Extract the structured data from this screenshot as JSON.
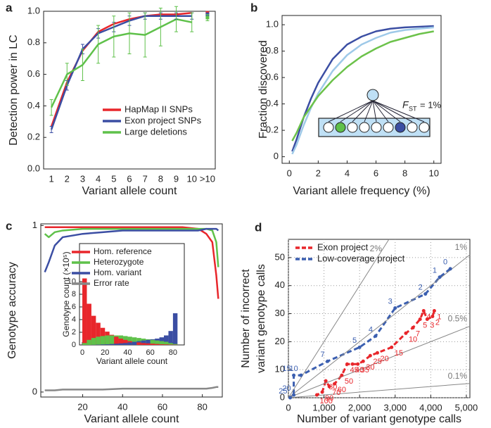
{
  "chart_data": [
    {
      "panel": "a",
      "type": "line",
      "xlabel": "Variant allele count",
      "ylabel": "Detection power in LC",
      "categories": [
        "1",
        "2",
        "3",
        "4",
        "5",
        "6",
        "7",
        "8",
        "9",
        "10",
        ">10"
      ],
      "ylim": [
        0,
        1
      ],
      "yticks": [
        {
          "value": 0,
          "label": "0.0"
        },
        0.2,
        0.4,
        0.6,
        0.8,
        {
          "value": 1,
          "label": "1.0"
        }
      ],
      "legend": "lower right",
      "series": [
        {
          "name": "HapMap II SNPs",
          "color": "#e8262b",
          "values": [
            0.27,
            0.55,
            0.75,
            0.87,
            0.92,
            0.95,
            0.97,
            0.98,
            0.98,
            0.99,
            0.99
          ]
        },
        {
          "name": "Exon project SNPs",
          "color": "#3b4ea3",
          "values": [
            0.25,
            0.53,
            0.76,
            0.86,
            0.9,
            0.94,
            0.97,
            0.97,
            0.97,
            0.97,
            0.98
          ],
          "errors": [
            0.02,
            0.03,
            0.03,
            0.03,
            0.03,
            0.03,
            0.02,
            0.02,
            0.02,
            0.02,
            0.01
          ]
        },
        {
          "name": "Large deletions",
          "color": "#5fc14a",
          "values": [
            0.39,
            0.6,
            0.66,
            0.79,
            0.84,
            0.86,
            0.85,
            0.9,
            0.95,
            0.93,
            0.96
          ],
          "errors": [
            0.05,
            0.07,
            0.1,
            0.12,
            0.13,
            0.13,
            0.14,
            0.12,
            0.08,
            0.06,
            0.02
          ]
        }
      ]
    },
    {
      "panel": "b",
      "type": "line",
      "xlabel": "Variant allele frequency (%)",
      "ylabel": "Fraction discovered",
      "x": [
        0.2,
        0.5,
        1,
        1.5,
        2,
        3,
        4,
        5,
        6,
        7,
        8,
        9,
        10
      ],
      "xlim": [
        -0.5,
        10.5
      ],
      "xticks": [
        0,
        2,
        4,
        6,
        8,
        10
      ],
      "ylim": [
        -0.05,
        1.07
      ],
      "yticks": [
        0,
        0.2,
        0.4,
        0.6,
        0.8,
        {
          "value": 1,
          "label": "1.0"
        }
      ],
      "annotation": {
        "symbol": "F",
        "subscript": "ST",
        "text": "= 1%"
      },
      "series": [
        {
          "color": "#3b4ea3",
          "values": [
            0.04,
            0.13,
            0.3,
            0.44,
            0.56,
            0.74,
            0.85,
            0.91,
            0.95,
            0.97,
            0.98,
            0.985,
            0.99
          ]
        },
        {
          "color": "#9ec9e8",
          "values": [
            0.02,
            0.09,
            0.24,
            0.37,
            0.48,
            0.65,
            0.77,
            0.85,
            0.9,
            0.94,
            0.96,
            0.97,
            0.98
          ]
        },
        {
          "color": "#6cc24a",
          "values": [
            0.12,
            0.18,
            0.3,
            0.38,
            0.46,
            0.58,
            0.68,
            0.76,
            0.82,
            0.87,
            0.9,
            0.93,
            0.95
          ]
        }
      ]
    },
    {
      "panel": "c",
      "type": "line",
      "xlabel": "Variant allele count",
      "ylabel": "Genotype accuracy",
      "x": [
        1,
        3,
        6,
        10,
        20,
        30,
        40,
        50,
        60,
        70,
        78,
        82,
        85,
        87,
        88
      ],
      "xlim": [
        -1,
        90
      ],
      "xticks": [
        20,
        40,
        60,
        80
      ],
      "ylim": [
        -0.03,
        1.01
      ],
      "yticks": [
        0,
        1
      ],
      "legend": "upper right",
      "series": [
        {
          "name": "Hom. reference",
          "color": "#e8262b",
          "values": [
            0.99,
            0.99,
            0.99,
            0.99,
            0.99,
            0.99,
            0.99,
            0.99,
            0.99,
            0.99,
            0.98,
            0.95,
            0.9,
            0.7,
            0.56
          ]
        },
        {
          "name": "Heterozygote",
          "color": "#5fc14a",
          "values": [
            0.95,
            0.93,
            0.96,
            0.97,
            0.98,
            0.98,
            0.98,
            0.98,
            0.98,
            0.98,
            0.98,
            0.98,
            0.97,
            0.9,
            0.75
          ]
        },
        {
          "name": "Hom. variant",
          "color": "#3b4ea3",
          "values": [
            0.72,
            0.78,
            0.88,
            0.93,
            0.95,
            0.96,
            0.97,
            0.97,
            0.97,
            0.97,
            0.97,
            0.98,
            0.98,
            0.98,
            0.97
          ]
        },
        {
          "name": "Error rate",
          "color": "#888888",
          "values": [
            0.01,
            0.01,
            0.01,
            0.015,
            0.015,
            0.015,
            0.02,
            0.02,
            0.02,
            0.02,
            0.02,
            0.02,
            0.025,
            0.03,
            0.03
          ]
        }
      ],
      "inset": {
        "type": "histogram",
        "xlabel": "Variant allele count",
        "ylabel": "Genotype count (×10⁵)",
        "bins": [
          0,
          4,
          8,
          12,
          16,
          20,
          24,
          28,
          32,
          36,
          40,
          44,
          48,
          52,
          56,
          60,
          64,
          68,
          72,
          76,
          80,
          84
        ],
        "xlim": [
          -2.5,
          90
        ],
        "xticks": [
          0,
          20,
          40,
          60,
          80
        ],
        "ylim": [
          0,
          16
        ],
        "yticks": [
          0,
          2,
          4,
          6,
          8,
          10
        ],
        "series": [
          {
            "color": "#e8262b",
            "values": [
              10.5,
              6.5,
              4.6,
              3.5,
              2.7,
              2.1,
              1.6,
              1.3,
              1.0,
              0.8,
              0.6,
              0.5,
              0.4,
              0.3,
              0.25,
              0.2,
              0.15,
              0.1,
              0.08,
              0.05,
              0.03
            ]
          },
          {
            "color": "#5fc14a",
            "values": [
              0.3,
              0.8,
              1.1,
              1.3,
              1.4,
              1.5,
              1.5,
              1.5,
              1.5,
              1.4,
              1.3,
              1.2,
              1.1,
              1.0,
              0.9,
              0.8,
              0.7,
              0.6,
              0.5,
              0.3,
              0.15
            ]
          },
          {
            "color": "#3b4ea3",
            "values": [
              0,
              0,
              0.02,
              0.05,
              0.08,
              0.1,
              0.15,
              0.2,
              0.25,
              0.3,
              0.4,
              0.5,
              0.6,
              0.7,
              0.8,
              0.9,
              1.0,
              1.2,
              1.5,
              2.2,
              5
            ]
          }
        ]
      }
    },
    {
      "panel": "d",
      "type": "line",
      "xlabel": "Number of variant genotype calls",
      "ylabel": [
        "Number of incorrect",
        "variant genotype calls"
      ],
      "xlim": [
        0,
        5100
      ],
      "xticks": [
        0,
        {
          "value": 1000,
          "label": "1,000"
        },
        {
          "value": 2000,
          "label": "2,000"
        },
        {
          "value": 3000,
          "label": "3,000"
        },
        {
          "value": 4000,
          "label": "4,000"
        },
        {
          "value": 5000,
          "label": "5,000"
        }
      ],
      "ylim": [
        0,
        56.5
      ],
      "yticks": [
        0,
        10,
        20,
        30,
        40,
        50
      ],
      "grid": true,
      "legend": "upper left",
      "dashed": true,
      "reference_lines": [
        {
          "label": "2%",
          "slope": 0.02
        },
        {
          "label": "1%",
          "slope": 0.01
        },
        {
          "label": "0.5%",
          "slope": 0.005
        },
        {
          "label": "0.1%",
          "slope": 0.001
        }
      ],
      "series": [
        {
          "name": "Exon project",
          "color": "#e8262b",
          "x": [
            4100,
            4050,
            3900,
            3800,
            3700,
            3500,
            3300,
            2900,
            2500,
            2300,
            2100,
            1950,
            1800,
            1650,
            1500,
            1300,
            1150,
            1050,
            950,
            800
          ],
          "values": [
            31,
            29,
            28,
            31,
            28,
            25,
            23,
            18,
            16,
            15,
            13,
            12,
            12,
            12,
            8,
            5,
            4,
            6,
            2,
            1
          ],
          "point_labels": [
            1,
            2,
            3,
            4,
            5,
            7,
            10,
            15,
            20,
            25,
            30,
            35,
            40,
            45,
            50,
            60,
            70,
            80,
            90,
            100
          ]
        },
        {
          "name": "Low-coverage project",
          "color": "#3b5fb0",
          "x": [
            4550,
            4250,
            3850,
            3000,
            2450,
            2000,
            1100,
            350,
            150,
            150,
            50
          ],
          "values": [
            46,
            43,
            37,
            32,
            22,
            18,
            13,
            8,
            8,
            1,
            0
          ],
          "point_labels": [
            0,
            1,
            2,
            3,
            4,
            5,
            7,
            10,
            15,
            20,
            25
          ]
        }
      ]
    }
  ]
}
